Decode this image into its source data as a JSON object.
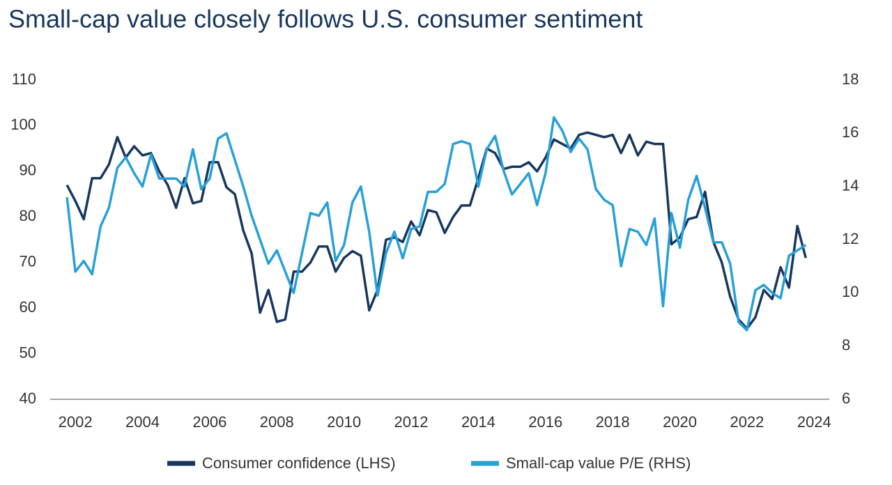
{
  "chart_data": {
    "type": "line",
    "title": "Small-cap value closely follows U.S. consumer sentiment",
    "x": [
      2001.75,
      2002,
      2002.25,
      2002.5,
      2002.75,
      2003,
      2003.25,
      2003.5,
      2003.75,
      2004,
      2004.25,
      2004.5,
      2004.75,
      2005,
      2005.25,
      2005.5,
      2005.75,
      2006,
      2006.25,
      2006.5,
      2006.75,
      2007,
      2007.25,
      2007.5,
      2007.75,
      2008,
      2008.25,
      2008.5,
      2008.75,
      2009,
      2009.25,
      2009.5,
      2009.75,
      2010,
      2010.25,
      2010.5,
      2010.75,
      2011,
      2011.25,
      2011.5,
      2011.75,
      2012,
      2012.25,
      2012.5,
      2012.75,
      2013,
      2013.25,
      2013.5,
      2013.75,
      2014,
      2014.25,
      2014.5,
      2014.75,
      2015,
      2015.25,
      2015.5,
      2015.75,
      2016,
      2016.25,
      2016.5,
      2016.75,
      2017,
      2017.25,
      2017.5,
      2017.75,
      2018,
      2018.25,
      2018.5,
      2018.75,
      2019,
      2019.25,
      2019.5,
      2019.75,
      2020,
      2020.25,
      2020.5,
      2020.75,
      2021,
      2021.25,
      2021.5,
      2021.75,
      2022,
      2022.25,
      2022.5,
      2022.75,
      2023,
      2023.25,
      2023.5,
      2023.75
    ],
    "series": [
      {
        "name": "Consumer confidence (LHS)",
        "color": "#17375e",
        "axis": "y",
        "values": [
          87,
          83.5,
          79.5,
          88.5,
          88.5,
          91.5,
          97.5,
          93,
          95.5,
          93.5,
          94,
          90,
          87,
          82,
          88.5,
          83,
          83.5,
          92,
          92,
          86.5,
          85,
          77,
          72,
          59,
          64,
          57,
          57.5,
          68,
          68,
          70,
          73.5,
          73.5,
          68,
          71,
          72.5,
          71.5,
          59.5,
          64,
          75,
          75.5,
          74.5,
          79,
          76,
          81.5,
          81,
          76.5,
          80,
          82.5,
          82.5,
          88.5,
          95,
          94,
          90.5,
          91,
          91,
          92,
          90,
          93,
          97,
          96,
          95,
          98,
          98.5,
          98,
          97.5,
          98,
          94,
          98,
          93.5,
          96.5,
          96,
          96,
          74,
          75.5,
          79.5,
          80,
          85.5,
          74.5,
          70,
          62.5,
          57.5,
          55.5,
          58,
          64,
          62,
          69,
          64.5,
          78,
          71
        ]
      },
      {
        "name": "Small-cap value P/E (RHS)",
        "color": "#27a0d8",
        "axis": "y2",
        "values": [
          13.6,
          10.8,
          11.2,
          10.7,
          12.5,
          13.2,
          14.7,
          15.1,
          14.5,
          14.0,
          15.2,
          14.3,
          14.3,
          14.3,
          14.0,
          15.4,
          13.9,
          14.3,
          15.8,
          16.0,
          15.0,
          14.0,
          12.9,
          12.0,
          11.1,
          11.6,
          10.8,
          10.0,
          11.5,
          13.0,
          12.9,
          13.4,
          11.2,
          11.8,
          13.4,
          14.0,
          12.3,
          9.9,
          11.5,
          12.3,
          11.3,
          12.4,
          12.5,
          13.8,
          13.8,
          14.1,
          15.6,
          15.7,
          15.6,
          14.0,
          15.4,
          15.9,
          14.6,
          13.7,
          14.1,
          14.5,
          13.3,
          14.5,
          16.6,
          16.1,
          15.3,
          15.8,
          15.4,
          13.9,
          13.5,
          13.3,
          11.0,
          12.4,
          12.3,
          11.8,
          12.8,
          9.5,
          13.0,
          11.7,
          13.5,
          14.4,
          13.2,
          11.9,
          11.9,
          11.1,
          8.9,
          8.6,
          10.1,
          10.3,
          10.0,
          9.8,
          11.4,
          11.6,
          11.8
        ]
      }
    ],
    "xlim": [
      2001.25,
      2024.45
    ],
    "xticks": [
      2002,
      2004,
      2006,
      2008,
      2010,
      2012,
      2014,
      2016,
      2018,
      2020,
      2022,
      2024
    ],
    "ylim": [
      40,
      110
    ],
    "yticks": [
      40,
      50,
      60,
      70,
      80,
      90,
      100,
      110
    ],
    "y2lim": [
      6,
      18
    ],
    "y2ticks": [
      6,
      8,
      10,
      12,
      14,
      16,
      18
    ],
    "legend": "bottom"
  }
}
